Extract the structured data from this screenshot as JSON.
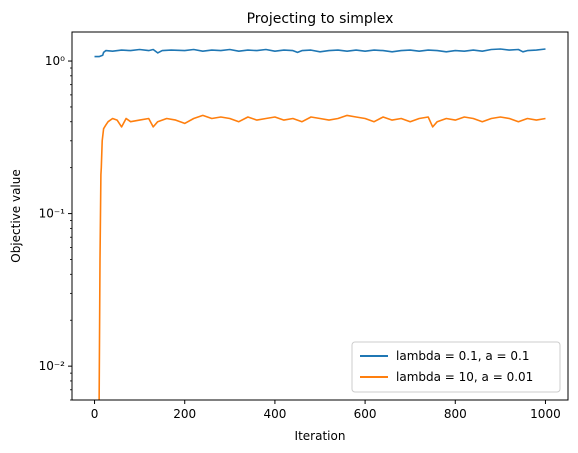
{
  "chart_data": {
    "type": "line",
    "title": "Projecting to simplex",
    "xlabel": "Iteration",
    "ylabel": "Objective value",
    "xlim": [
      -50,
      1050
    ],
    "ylim": [
      0.006,
      1.55
    ],
    "yscale": "log",
    "grid": false,
    "legend_position": "lower-right",
    "x_ticks": [
      0,
      200,
      400,
      600,
      800,
      1000
    ],
    "x_tick_labels": [
      "0",
      "200",
      "400",
      "600",
      "800",
      "1000"
    ],
    "y_ticks": [
      0.01,
      0.1,
      1
    ],
    "y_tick_labels": [
      "10⁻²",
      "10⁻¹",
      "10⁰"
    ],
    "series": [
      {
        "name": "lambda = 0.1, a = 0.1",
        "color": "#1f77b4",
        "points": [
          [
            0,
            1.07
          ],
          [
            10,
            1.07
          ],
          [
            18,
            1.09
          ],
          [
            20,
            1.14
          ],
          [
            25,
            1.17
          ],
          [
            40,
            1.16
          ],
          [
            60,
            1.18
          ],
          [
            80,
            1.17
          ],
          [
            100,
            1.19
          ],
          [
            120,
            1.17
          ],
          [
            130,
            1.19
          ],
          [
            140,
            1.13
          ],
          [
            150,
            1.17
          ],
          [
            170,
            1.18
          ],
          [
            200,
            1.17
          ],
          [
            220,
            1.19
          ],
          [
            240,
            1.16
          ],
          [
            260,
            1.18
          ],
          [
            280,
            1.17
          ],
          [
            300,
            1.19
          ],
          [
            320,
            1.16
          ],
          [
            340,
            1.18
          ],
          [
            360,
            1.17
          ],
          [
            380,
            1.19
          ],
          [
            400,
            1.16
          ],
          [
            420,
            1.18
          ],
          [
            440,
            1.17
          ],
          [
            450,
            1.14
          ],
          [
            460,
            1.17
          ],
          [
            480,
            1.18
          ],
          [
            500,
            1.15
          ],
          [
            520,
            1.17
          ],
          [
            540,
            1.18
          ],
          [
            560,
            1.16
          ],
          [
            580,
            1.18
          ],
          [
            600,
            1.16
          ],
          [
            620,
            1.18
          ],
          [
            640,
            1.17
          ],
          [
            660,
            1.15
          ],
          [
            680,
            1.17
          ],
          [
            700,
            1.18
          ],
          [
            720,
            1.16
          ],
          [
            740,
            1.18
          ],
          [
            760,
            1.17
          ],
          [
            780,
            1.15
          ],
          [
            800,
            1.17
          ],
          [
            820,
            1.16
          ],
          [
            840,
            1.18
          ],
          [
            860,
            1.16
          ],
          [
            880,
            1.19
          ],
          [
            900,
            1.2
          ],
          [
            920,
            1.18
          ],
          [
            940,
            1.19
          ],
          [
            950,
            1.15
          ],
          [
            960,
            1.17
          ],
          [
            980,
            1.18
          ],
          [
            1000,
            1.2
          ]
        ]
      },
      {
        "name": "lambda = 10, a = 0.01",
        "color": "#ff7f0e",
        "points": [
          [
            10,
            0.0055
          ],
          [
            12,
            0.05
          ],
          [
            14,
            0.18
          ],
          [
            15,
            0.2
          ],
          [
            17,
            0.3
          ],
          [
            20,
            0.36
          ],
          [
            25,
            0.38
          ],
          [
            30,
            0.4
          ],
          [
            40,
            0.42
          ],
          [
            50,
            0.41
          ],
          [
            60,
            0.37
          ],
          [
            70,
            0.42
          ],
          [
            80,
            0.4
          ],
          [
            100,
            0.41
          ],
          [
            120,
            0.42
          ],
          [
            130,
            0.37
          ],
          [
            140,
            0.4
          ],
          [
            160,
            0.42
          ],
          [
            180,
            0.41
          ],
          [
            200,
            0.39
          ],
          [
            220,
            0.42
          ],
          [
            240,
            0.44
          ],
          [
            260,
            0.42
          ],
          [
            280,
            0.43
          ],
          [
            300,
            0.42
          ],
          [
            320,
            0.4
          ],
          [
            340,
            0.43
          ],
          [
            360,
            0.41
          ],
          [
            380,
            0.42
          ],
          [
            400,
            0.43
          ],
          [
            420,
            0.41
          ],
          [
            440,
            0.42
          ],
          [
            460,
            0.4
          ],
          [
            480,
            0.43
          ],
          [
            500,
            0.42
          ],
          [
            520,
            0.41
          ],
          [
            540,
            0.42
          ],
          [
            560,
            0.44
          ],
          [
            580,
            0.43
          ],
          [
            600,
            0.42
          ],
          [
            620,
            0.4
          ],
          [
            640,
            0.43
          ],
          [
            660,
            0.41
          ],
          [
            680,
            0.42
          ],
          [
            700,
            0.4
          ],
          [
            720,
            0.42
          ],
          [
            740,
            0.43
          ],
          [
            750,
            0.37
          ],
          [
            760,
            0.4
          ],
          [
            780,
            0.42
          ],
          [
            800,
            0.41
          ],
          [
            820,
            0.43
          ],
          [
            840,
            0.42
          ],
          [
            860,
            0.4
          ],
          [
            880,
            0.42
          ],
          [
            900,
            0.43
          ],
          [
            920,
            0.42
          ],
          [
            940,
            0.4
          ],
          [
            960,
            0.42
          ],
          [
            980,
            0.41
          ],
          [
            1000,
            0.42
          ]
        ]
      }
    ]
  }
}
